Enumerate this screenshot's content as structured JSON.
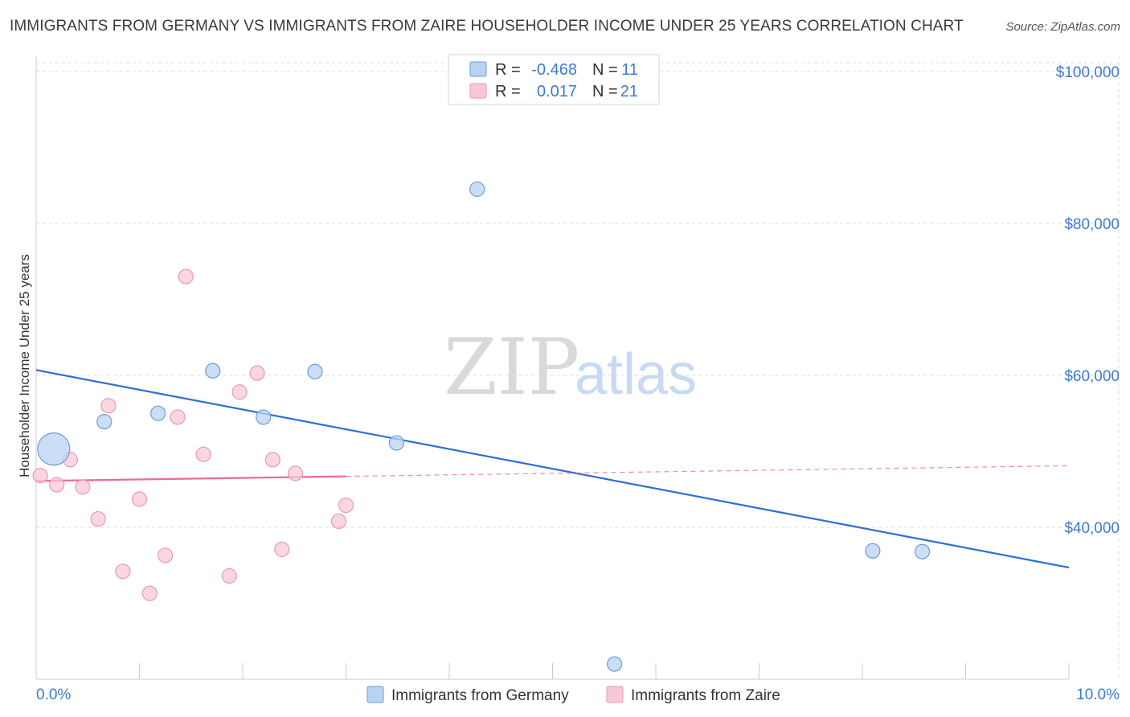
{
  "title": "IMMIGRANTS FROM GERMANY VS IMMIGRANTS FROM ZAIRE HOUSEHOLDER INCOME UNDER 25 YEARS CORRELATION CHART",
  "source": "Source: ZipAtlas.com",
  "watermark": {
    "zip": "ZIP",
    "atlas": "atlas"
  },
  "colors": {
    "germany_fill": "#b9d3f3",
    "germany_stroke": "#6a9ed9",
    "germany_line": "#2d6fd2",
    "zaire_fill": "#f8c8d6",
    "zaire_stroke": "#e69ab3",
    "zaire_line": "#e86c94",
    "tick_label": "#3d7bd0",
    "grid": "#dddddd"
  },
  "legend": {
    "rows": [
      {
        "r_label": "R =",
        "r_value": "-0.468",
        "n_label": "N =",
        "n_value": "11"
      },
      {
        "r_label": "R =",
        "r_value": "0.017",
        "n_label": "N =",
        "n_value": "21"
      }
    ]
  },
  "chart_data": {
    "type": "scatter",
    "title": "IMMIGRANTS FROM GERMANY VS IMMIGRANTS FROM ZAIRE HOUSEHOLDER INCOME UNDER 25 YEARS CORRELATION CHART",
    "xlabel": "",
    "ylabel": "Householder Income Under 25 years",
    "xlim": [
      0,
      10
    ],
    "ylim": [
      20000,
      102000
    ],
    "x_tick_labels": [
      "0.0%",
      "10.0%"
    ],
    "y_ticks": [
      40000,
      60000,
      80000,
      100000
    ],
    "y_tick_labels": [
      "$40,000",
      "$60,000",
      "$80,000",
      "$100,000"
    ],
    "grid": true,
    "legend_position": "top-center",
    "series": [
      {
        "name": "Immigrants from Germany",
        "r": -0.468,
        "n": 11,
        "points": [
          {
            "x": 0.17,
            "y": 50300,
            "size": "large"
          },
          {
            "x": 0.66,
            "y": 53900
          },
          {
            "x": 1.18,
            "y": 55000
          },
          {
            "x": 1.71,
            "y": 60600
          },
          {
            "x": 2.2,
            "y": 54500
          },
          {
            "x": 2.7,
            "y": 60500
          },
          {
            "x": 3.49,
            "y": 51100
          },
          {
            "x": 4.27,
            "y": 84500
          },
          {
            "x": 8.1,
            "y": 36900
          },
          {
            "x": 8.58,
            "y": 36800
          },
          {
            "x": 5.6,
            "y": 22000
          }
        ],
        "trend": {
          "x0": 0.0,
          "y0": 60700,
          "x1": 10.0,
          "y1": 34700
        }
      },
      {
        "name": "Immigrants from Zaire",
        "r": 0.017,
        "n": 21,
        "points": [
          {
            "x": 0.04,
            "y": 46800
          },
          {
            "x": 0.2,
            "y": 45600
          },
          {
            "x": 0.33,
            "y": 48900
          },
          {
            "x": 0.45,
            "y": 45300
          },
          {
            "x": 0.6,
            "y": 41100
          },
          {
            "x": 0.7,
            "y": 56000
          },
          {
            "x": 0.84,
            "y": 34200
          },
          {
            "x": 1.0,
            "y": 43700
          },
          {
            "x": 1.1,
            "y": 31300
          },
          {
            "x": 1.25,
            "y": 36300
          },
          {
            "x": 1.37,
            "y": 54500
          },
          {
            "x": 1.45,
            "y": 73000
          },
          {
            "x": 1.62,
            "y": 49600
          },
          {
            "x": 1.87,
            "y": 33600
          },
          {
            "x": 1.97,
            "y": 57800
          },
          {
            "x": 2.14,
            "y": 60300
          },
          {
            "x": 2.29,
            "y": 48900
          },
          {
            "x": 2.38,
            "y": 37100
          },
          {
            "x": 2.51,
            "y": 47100
          },
          {
            "x": 2.93,
            "y": 40800
          },
          {
            "x": 3.0,
            "y": 42900
          }
        ],
        "trend": {
          "x0": 0.0,
          "y0": 46100,
          "x1": 10.0,
          "y1": 48100,
          "solid_until_x": 3.0
        }
      }
    ]
  }
}
